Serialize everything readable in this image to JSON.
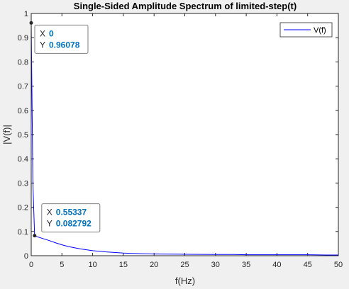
{
  "chart_data": {
    "type": "line",
    "title": "Single-Sided Amplitude Spectrum of limited-step(t)",
    "xlabel": "f(Hz)",
    "ylabel": "|V(f)|",
    "xlim": [
      0,
      50
    ],
    "ylim": [
      0,
      1
    ],
    "xticks": [
      0,
      5,
      10,
      15,
      20,
      25,
      30,
      35,
      40,
      45,
      50
    ],
    "yticks": [
      0,
      0.1,
      0.2,
      0.3,
      0.4,
      0.5,
      0.6,
      0.7,
      0.8,
      0.9,
      1
    ],
    "xtick_labels": [
      "0",
      "5",
      "10",
      "15",
      "20",
      "25",
      "30",
      "35",
      "40",
      "45",
      "50"
    ],
    "ytick_labels": [
      "0",
      "0.1",
      "0.2",
      "0.3",
      "0.4",
      "0.5",
      "0.6",
      "0.7",
      "0.8",
      "0.9",
      "1"
    ],
    "grid": false,
    "legend_position": "top-right",
    "series": [
      {
        "name": "V(f)",
        "color": "#0000ff",
        "x": [
          0,
          0.27,
          0.55337,
          1,
          2,
          3,
          4,
          5,
          6,
          8,
          10,
          12,
          15,
          18,
          20,
          25,
          30,
          33,
          35,
          40,
          45,
          48,
          50
        ],
        "y": [
          0.96078,
          0.3,
          0.082792,
          0.078,
          0.07,
          0.062,
          0.053,
          0.045,
          0.038,
          0.028,
          0.021,
          0.016,
          0.011,
          0.008,
          0.007,
          0.006,
          0.005,
          0.005,
          0.004,
          0.004,
          0.004,
          0.003,
          0.003
        ]
      }
    ],
    "datatips": [
      {
        "x_label": "X",
        "x_value": "0",
        "y_label": "Y",
        "y_value": "0.96078",
        "x": 0,
        "y": 0.96078
      },
      {
        "x_label": "X",
        "x_value": "0.55337",
        "y_label": "Y",
        "y_value": "0.082792",
        "x": 0.55337,
        "y": 0.082792
      }
    ],
    "colors": {
      "axes": "#262626",
      "datatip_value": "#0072bd",
      "datatip_border": "#7f7f7f",
      "marker": "#262626"
    }
  }
}
